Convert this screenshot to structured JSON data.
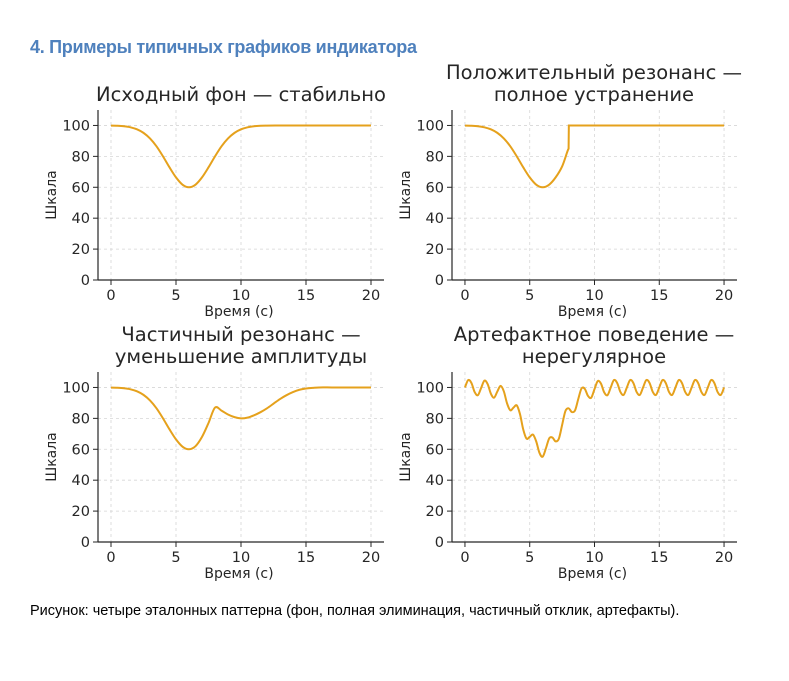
{
  "heading": "4. Примеры типичных графиков индикатора",
  "caption": "Рисунок: четыре эталонных паттерна (фон, полная элиминация, частичный отклик, артефакты).",
  "line_color": "#e5a11c",
  "chart_data": [
    {
      "type": "line",
      "title": "Исходный фон — стабильно",
      "xlabel": "Время (с)",
      "ylabel": "Шкала",
      "xlim": [
        -1,
        21
      ],
      "ylim": [
        0,
        110
      ],
      "xticks": [
        0,
        5,
        10,
        15,
        20
      ],
      "yticks": [
        0,
        20,
        40,
        60,
        80,
        100
      ],
      "grid": true,
      "points": [
        [
          0,
          99.9
        ],
        [
          0.5,
          99.8
        ],
        [
          1,
          99.5
        ],
        [
          1.5,
          98.8
        ],
        [
          2,
          97.5
        ],
        [
          2.5,
          95.2
        ],
        [
          3,
          91.6
        ],
        [
          3.5,
          86.5
        ],
        [
          4,
          80
        ],
        [
          4.5,
          72.9
        ],
        [
          5,
          66.4
        ],
        [
          5.5,
          61.7
        ],
        [
          6,
          60
        ],
        [
          6.5,
          61.7
        ],
        [
          7,
          66.4
        ],
        [
          7.5,
          72.9
        ],
        [
          8,
          80
        ],
        [
          8.5,
          86.5
        ],
        [
          9,
          91.6
        ],
        [
          9.5,
          95.2
        ],
        [
          10,
          97.5
        ],
        [
          10.5,
          98.8
        ],
        [
          11,
          99.5
        ],
        [
          11.5,
          99.8
        ],
        [
          12,
          99.9
        ],
        [
          13,
          100
        ],
        [
          14,
          100
        ],
        [
          16,
          100
        ],
        [
          18,
          100
        ],
        [
          20,
          100
        ]
      ]
    },
    {
      "type": "line",
      "title": "Положительный резонанс — полное устранение",
      "xlabel": "Время (с)",
      "ylabel": "Шкала",
      "xlim": [
        -1,
        21
      ],
      "ylim": [
        0,
        110
      ],
      "xticks": [
        0,
        5,
        10,
        15,
        20
      ],
      "yticks": [
        0,
        20,
        40,
        60,
        80,
        100
      ],
      "grid": true,
      "points": [
        [
          0,
          99.9
        ],
        [
          0.5,
          99.8
        ],
        [
          1,
          99.5
        ],
        [
          1.5,
          98.8
        ],
        [
          2,
          97.5
        ],
        [
          2.5,
          95.2
        ],
        [
          3,
          91.6
        ],
        [
          3.5,
          86.5
        ],
        [
          4,
          80
        ],
        [
          4.5,
          72.9
        ],
        [
          5,
          66.4
        ],
        [
          5.5,
          61.7
        ],
        [
          6,
          60
        ],
        [
          6.5,
          61.7
        ],
        [
          7,
          66.4
        ],
        [
          7.5,
          73.5
        ],
        [
          7.9,
          83
        ],
        [
          8,
          85
        ],
        [
          8.02,
          100
        ],
        [
          10,
          100
        ],
        [
          12,
          100
        ],
        [
          14,
          100
        ],
        [
          16,
          100
        ],
        [
          18,
          100
        ],
        [
          20,
          100
        ]
      ]
    },
    {
      "type": "line",
      "title": "Частичный резонанс — уменьшение амплитуды",
      "xlabel": "Время (с)",
      "ylabel": "Шкала",
      "xlim": [
        -1,
        21
      ],
      "ylim": [
        0,
        110
      ],
      "xticks": [
        0,
        5,
        10,
        15,
        20
      ],
      "yticks": [
        0,
        20,
        40,
        60,
        80,
        100
      ],
      "grid": true,
      "points": [
        [
          0,
          99.9
        ],
        [
          0.5,
          99.8
        ],
        [
          1,
          99.5
        ],
        [
          1.5,
          98.8
        ],
        [
          2,
          97.5
        ],
        [
          2.5,
          95.2
        ],
        [
          3,
          91.6
        ],
        [
          3.5,
          86.5
        ],
        [
          4,
          80
        ],
        [
          4.5,
          72.9
        ],
        [
          5,
          66.4
        ],
        [
          5.5,
          61.7
        ],
        [
          6,
          60
        ],
        [
          6.5,
          62
        ],
        [
          7,
          68
        ],
        [
          7.5,
          77
        ],
        [
          8,
          87
        ],
        [
          8.5,
          85
        ],
        [
          9,
          82.5
        ],
        [
          9.5,
          80.8
        ],
        [
          10,
          80
        ],
        [
          10.5,
          80.5
        ],
        [
          11,
          82
        ],
        [
          11.5,
          84
        ],
        [
          12,
          86.5
        ],
        [
          12.5,
          89.5
        ],
        [
          13,
          92.5
        ],
        [
          13.5,
          95
        ],
        [
          14,
          97
        ],
        [
          14.5,
          98.5
        ],
        [
          15,
          99.3
        ],
        [
          15.5,
          99.7
        ],
        [
          16,
          100
        ],
        [
          17,
          100
        ],
        [
          18,
          100
        ],
        [
          19,
          100
        ],
        [
          20,
          100
        ]
      ]
    },
    {
      "type": "line",
      "title": "Артефактное поведение — нерегулярное",
      "xlabel": "Время (с)",
      "ylabel": "Шкала",
      "xlim": [
        -1,
        21
      ],
      "ylim": [
        0,
        110
      ],
      "xticks": [
        0,
        5,
        10,
        15,
        20
      ],
      "yticks": [
        0,
        20,
        40,
        60,
        80,
        100
      ],
      "grid": true,
      "points": [
        [
          0,
          100
        ],
        [
          0.25,
          104.8
        ],
        [
          0.5,
          102.9
        ],
        [
          0.75,
          97.0
        ],
        [
          1,
          95.0
        ],
        [
          1.25,
          99.7
        ],
        [
          1.5,
          104.4
        ],
        [
          1.75,
          102.2
        ],
        [
          2,
          96.0
        ],
        [
          2.25,
          93.4
        ],
        [
          2.5,
          97.4
        ],
        [
          2.75,
          101.0
        ],
        [
          3,
          97.5
        ],
        [
          3.25,
          89.7
        ],
        [
          3.5,
          85.2
        ],
        [
          3.75,
          87.0
        ],
        [
          4,
          88.4
        ],
        [
          4.25,
          82.7
        ],
        [
          4.5,
          72.8
        ],
        [
          4.75,
          66.9
        ],
        [
          5,
          68.0
        ],
        [
          5.25,
          69.5
        ],
        [
          5.5,
          65.1
        ],
        [
          5.75,
          57.7
        ],
        [
          6,
          55.2
        ],
        [
          6.25,
          60.6
        ],
        [
          6.5,
          67.0
        ],
        [
          6.75,
          67.6
        ],
        [
          7,
          65.1
        ],
        [
          7.25,
          66.9
        ],
        [
          7.5,
          75.7
        ],
        [
          7.75,
          84.6
        ],
        [
          8,
          86.5
        ],
        [
          8.25,
          84.1
        ],
        [
          8.5,
          85.2
        ],
        [
          8.75,
          92.6
        ],
        [
          9,
          99.4
        ],
        [
          9.25,
          99.1
        ],
        [
          9.5,
          94.5
        ],
        [
          9.75,
          93.4
        ],
        [
          10,
          98.9
        ],
        [
          10.25,
          104.1
        ],
        [
          10.5,
          102.5
        ],
        [
          10.75,
          96.8
        ],
        [
          11,
          95.0
        ],
        [
          11.25,
          99.9
        ],
        [
          11.5,
          104.8
        ],
        [
          11.75,
          102.9
        ],
        [
          12,
          97.1
        ],
        [
          12.25,
          95.2
        ],
        [
          12.5,
          100
        ],
        [
          12.75,
          104.8
        ],
        [
          13,
          102.9
        ],
        [
          13.25,
          97.1
        ],
        [
          13.5,
          95.2
        ],
        [
          13.75,
          100
        ],
        [
          14,
          104.8
        ],
        [
          14.25,
          102.9
        ],
        [
          14.5,
          97.1
        ],
        [
          14.75,
          95.2
        ],
        [
          15,
          100
        ],
        [
          15.25,
          104.8
        ],
        [
          15.5,
          102.9
        ],
        [
          15.75,
          97.1
        ],
        [
          16,
          95.2
        ],
        [
          16.25,
          100
        ],
        [
          16.5,
          104.8
        ],
        [
          16.75,
          102.9
        ],
        [
          17,
          97.1
        ],
        [
          17.25,
          95.2
        ],
        [
          17.5,
          100
        ],
        [
          17.75,
          104.8
        ],
        [
          18,
          102.9
        ],
        [
          18.25,
          97.1
        ],
        [
          18.5,
          95.2
        ],
        [
          18.75,
          100
        ],
        [
          19,
          104.8
        ],
        [
          19.25,
          102.9
        ],
        [
          19.5,
          97.1
        ],
        [
          19.75,
          95.2
        ],
        [
          20,
          100
        ]
      ]
    }
  ]
}
